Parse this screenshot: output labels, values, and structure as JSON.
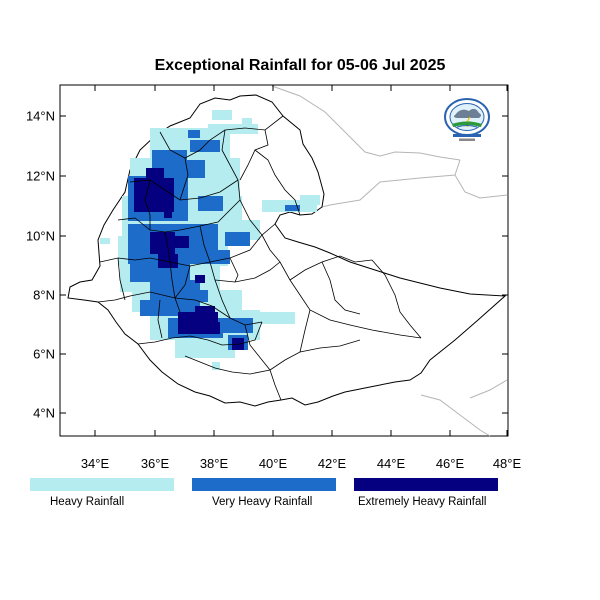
{
  "title": "Exceptional Rainfall for 05-06 Jul 2025",
  "map": {
    "lat_ticks": [
      "14°N",
      "12°N",
      "10°N",
      "8°N",
      "6°N",
      "4°N"
    ],
    "lon_ticks": [
      "34°E",
      "36°E",
      "38°E",
      "40°E",
      "42°E",
      "44°E",
      "46°E",
      "48°E"
    ]
  },
  "legend": [
    {
      "label": "Heavy Rainfall",
      "color": "#b4ecef"
    },
    {
      "label": "Very Heavy Rainfall",
      "color": "#1e6cc9"
    },
    {
      "label": "Extremely Heavy Rainfall",
      "color": "#04007f"
    }
  ],
  "logo": {
    "icon": "meteorology-agency-logo-icon"
  }
}
